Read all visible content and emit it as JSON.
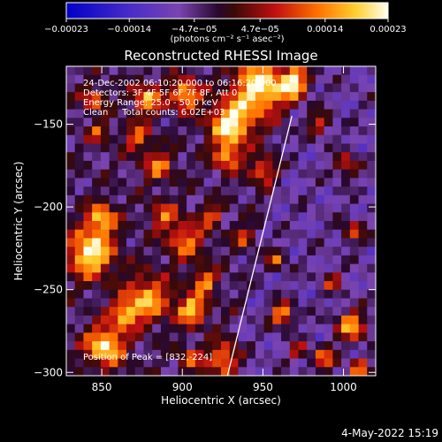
{
  "chart_data": {
    "type": "heatmap",
    "title": "Reconstructed RHESSI Image",
    "xlabel": "Heliocentric X (arcsec)",
    "ylabel": "Heliocentric Y (arcsec)",
    "xlim": [
      828,
      1020
    ],
    "ylim": [
      -302,
      -115
    ],
    "x_ticks": [
      850,
      900,
      950,
      1000
    ],
    "x_tick_labels": [
      "850",
      "900",
      "950",
      "1000"
    ],
    "y_ticks": [
      -150,
      -200,
      -250,
      -300
    ],
    "y_tick_labels": [
      "−150",
      "−200",
      "−250",
      "−300"
    ],
    "colorbar": {
      "range": [
        -0.00023,
        0.00023
      ],
      "tick_values": [
        -0.00023,
        -0.00014,
        -4.7e-05,
        4.7e-05,
        0.00014,
        0.00023
      ],
      "tick_labels": [
        "−0.00023",
        "−0.00014",
        "−4.7e−05",
        "4.7e−05",
        "0.00014",
        "0.00023"
      ],
      "units_label": "(photons cm⁻² s⁻¹ asec⁻²)"
    },
    "annotations": {
      "time": "24-Dec-2002 06:10:20.000 to 06:16:20.000",
      "detectors": "Detectors: 3F 4F 5F 6F 7F 8F, Att 0",
      "energy": "Energy Range: 25.0 - 50.0 keV",
      "clean": "Clean     Total counts: 6.02E+03",
      "peak": "Position of Peak = [832,-224]"
    },
    "limb_line": [
      [
        928,
        -302
      ],
      [
        968,
        -145
      ]
    ],
    "peak_position": [
      832,
      -224
    ],
    "blobs": [
      [
        843,
        -228,
        14,
        1.0
      ],
      [
        850,
        -207,
        9,
        0.8
      ],
      [
        852,
        -284,
        12,
        0.95
      ],
      [
        878,
        -256,
        14,
        0.75
      ],
      [
        864,
        -265,
        8,
        0.7
      ],
      [
        906,
        -262,
        9,
        0.85
      ],
      [
        902,
        -220,
        12,
        0.6
      ],
      [
        888,
        -205,
        8,
        0.55
      ],
      [
        914,
        -245,
        7,
        0.7
      ],
      [
        926,
        -292,
        10,
        0.7
      ],
      [
        905,
        -292,
        7,
        0.5
      ],
      [
        885,
        -175,
        9,
        0.6
      ],
      [
        872,
        -158,
        8,
        0.55
      ],
      [
        878,
        -135,
        9,
        0.75
      ],
      [
        902,
        -132,
        9,
        0.85
      ],
      [
        930,
        -150,
        13,
        1.0
      ],
      [
        948,
        -128,
        16,
        1.0
      ],
      [
        928,
        -170,
        8,
        0.7
      ],
      [
        950,
        -178,
        8,
        0.6
      ],
      [
        962,
        -265,
        7,
        0.85
      ],
      [
        958,
        -232,
        6,
        0.6
      ],
      [
        970,
        -125,
        9,
        0.9
      ],
      [
        985,
        -150,
        7,
        0.55
      ],
      [
        1002,
        -175,
        7,
        0.6
      ],
      [
        1006,
        -215,
        7,
        0.55
      ],
      [
        993,
        -245,
        6,
        0.5
      ],
      [
        1005,
        -272,
        9,
        0.85
      ],
      [
        988,
        -292,
        7,
        0.7
      ],
      [
        972,
        -287,
        5,
        0.6
      ],
      [
        845,
        -135,
        7,
        0.6
      ],
      [
        848,
        -155,
        6,
        0.5
      ],
      [
        918,
        -205,
        6,
        0.55
      ],
      [
        938,
        -218,
        6,
        0.5
      ],
      [
        1010,
        -298,
        6,
        0.7
      ]
    ],
    "grid": false,
    "legend": "none"
  },
  "footer": {
    "date": "4-May-2022 15:19"
  }
}
